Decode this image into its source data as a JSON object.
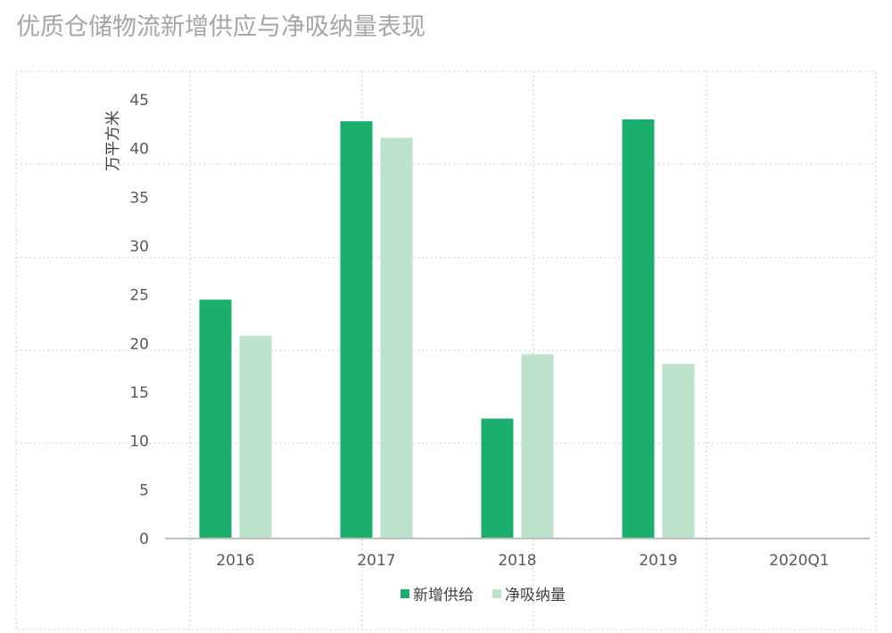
{
  "chart_data": {
    "type": "bar",
    "title": "优质仓储物流新增供应与净吸纳量表现",
    "ylabel": "万平方米",
    "xlabel": "",
    "categories": [
      "2016",
      "2017",
      "2018",
      "2019",
      "2020Q1"
    ],
    "ylim": [
      0,
      45
    ],
    "yticks": [
      0,
      5,
      10,
      15,
      20,
      25,
      30,
      35,
      40,
      45
    ],
    "grid": true,
    "legend_position": "bottom",
    "series": [
      {
        "name": "新增供给",
        "color": "#1aaf6c",
        "values": [
          24.5,
          42.8,
          12.3,
          43.0,
          0
        ]
      },
      {
        "name": "净吸纳量",
        "color": "#bde2cb",
        "values": [
          20.8,
          41.1,
          18.9,
          17.9,
          0
        ]
      }
    ]
  }
}
